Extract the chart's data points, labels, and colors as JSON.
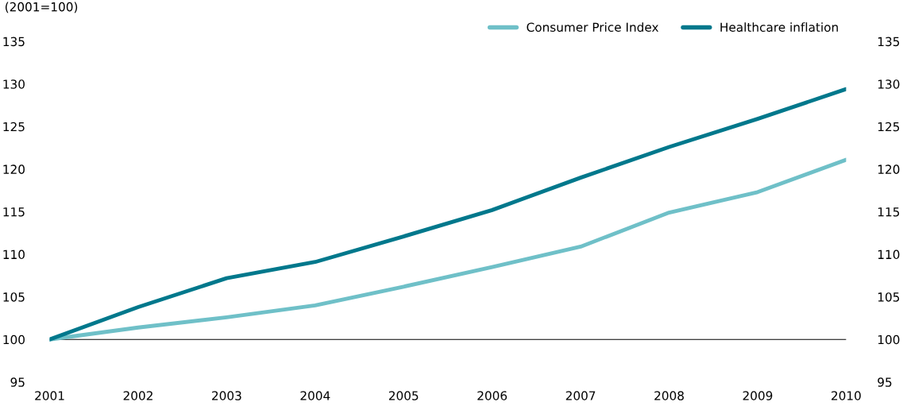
{
  "chart_data": {
    "type": "line",
    "ylabel": "(2001=100)",
    "categories": [
      "2001",
      "2002",
      "2003",
      "2004",
      "2005",
      "2006",
      "2007",
      "2008",
      "2009",
      "2010"
    ],
    "series": [
      {
        "name": "Consumer Price Index",
        "color": "#6fc0c8",
        "values": [
          100,
          101.4,
          102.6,
          104.0,
          106.2,
          108.5,
          110.9,
          114.9,
          117.3,
          121.1
        ]
      },
      {
        "name": "Healthcare inflation",
        "color": "#00788c",
        "values": [
          100,
          103.8,
          107.2,
          109.1,
          112.1,
          115.2,
          119.0,
          122.6,
          125.9,
          129.4
        ]
      }
    ],
    "ylim": [
      95,
      135
    ],
    "yticks": [
      95,
      100,
      105,
      110,
      115,
      120,
      125,
      130,
      135
    ],
    "y2lim": [
      95,
      135
    ],
    "y2ticks": [
      95,
      100,
      105,
      110,
      115,
      120,
      125,
      130,
      135
    ],
    "ref_lines": [
      {
        "axis": "y",
        "value": 100,
        "color": "#000000"
      }
    ],
    "grid": false,
    "legend": "top right",
    "marker": "none",
    "line_style": "solid"
  }
}
